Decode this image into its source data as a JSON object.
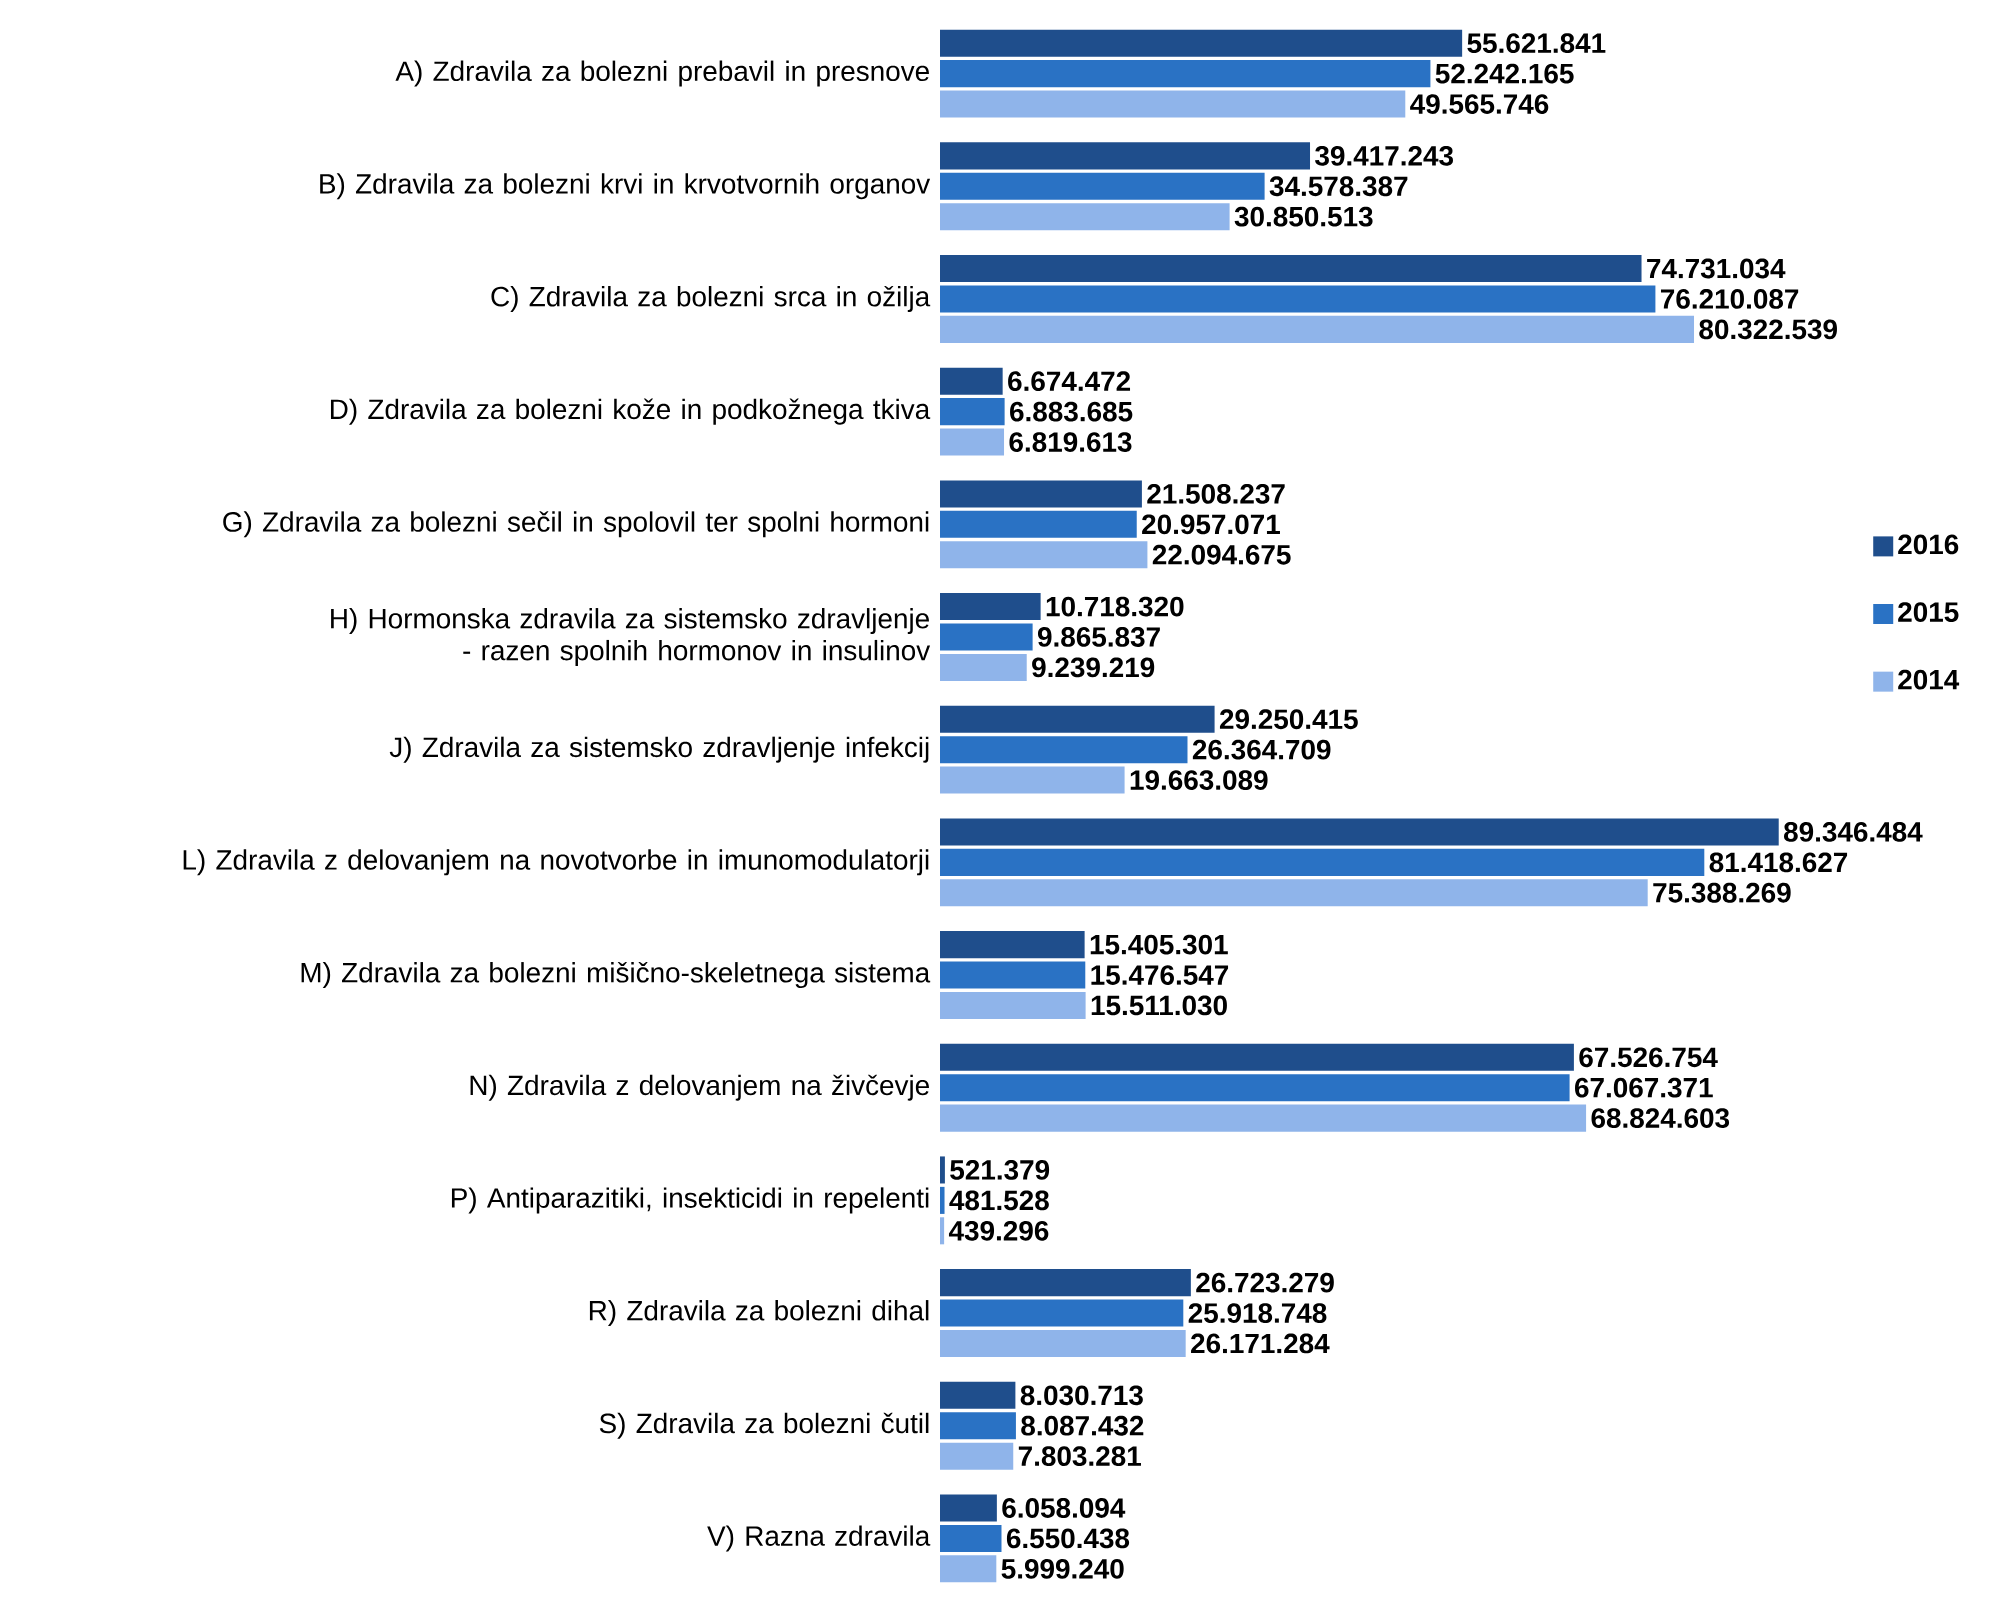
{
  "chart_data": {
    "type": "bar",
    "orientation": "horizontal",
    "legend": "right",
    "categories": [
      "A) Zdravila za bolezni prebavil in presnove",
      "B) Zdravila za bolezni krvi in krvotvornih organov",
      "C) Zdravila za bolezni srca in ožilja",
      "D) Zdravila za bolezni kože in podkožnega tkiva",
      "G) Zdravila za bolezni sečil in spolovil ter spolni hormoni",
      "H) Hormonska zdravila za sistemsko zdravljenje - razen spolnih hormonov in insulinov",
      "J) Zdravila za sistemsko zdravljenje infekcij",
      "L) Zdravila z delovanjem na novotvorbe in imunomodulatorji",
      "M) Zdravila za bolezni mišično-skeletnega sistema",
      "N) Zdravila z delovanjem na živčevje",
      "P) Antiparazitiki, insekticidi in repelenti",
      "R) Zdravila za bolezni dihal",
      "S) Zdravila za bolezni čutil",
      "V) Razna zdravila"
    ],
    "series": [
      {
        "name": "2016",
        "color": "#1f4e8c",
        "values": [
          55621841,
          39417243,
          74731034,
          6674472,
          21508237,
          10718320,
          29250415,
          89346484,
          15405301,
          67526754,
          521379,
          26723279,
          8030713,
          6058094
        ],
        "value_labels": [
          "55.621.841",
          "39.417.243",
          "74.731.034",
          "6.674.472",
          "21.508.237",
          "10.718.320",
          "29.250.415",
          "89.346.484",
          "15.405.301",
          "67.526.754",
          "521.379",
          "26.723.279",
          "8.030.713",
          "6.058.094"
        ]
      },
      {
        "name": "2015",
        "color": "#2a72c4",
        "values": [
          52242165,
          34578387,
          76210087,
          6883685,
          20957071,
          9865837,
          26364709,
          81418627,
          15476547,
          67067371,
          481528,
          25918748,
          8087432,
          6550438
        ],
        "value_labels": [
          "52.242.165",
          "34.578.387",
          "76.210.087",
          "6.883.685",
          "20.957.071",
          "9.865.837",
          "26.364.709",
          "81.418.627",
          "15.476.547",
          "67.067.371",
          "481.528",
          "25.918.748",
          "8.087.432",
          "6.550.438"
        ]
      },
      {
        "name": "2014",
        "color": "#8fb4ea",
        "values": [
          49565746,
          30850513,
          80322539,
          6819613,
          22094675,
          9239219,
          19663089,
          75388269,
          15511030,
          68824603,
          439296,
          26171284,
          7803281,
          5999240
        ],
        "value_labels": [
          "49.565.746",
          "30.850.513",
          "80.322.539",
          "6.819.613",
          "22.094.675",
          "9.239.219",
          "19.663.089",
          "75.388.269",
          "15.511.030",
          "68.824.603",
          "439.296",
          "26.171.284",
          "7.803.281",
          "5.999.240"
        ]
      }
    ]
  }
}
